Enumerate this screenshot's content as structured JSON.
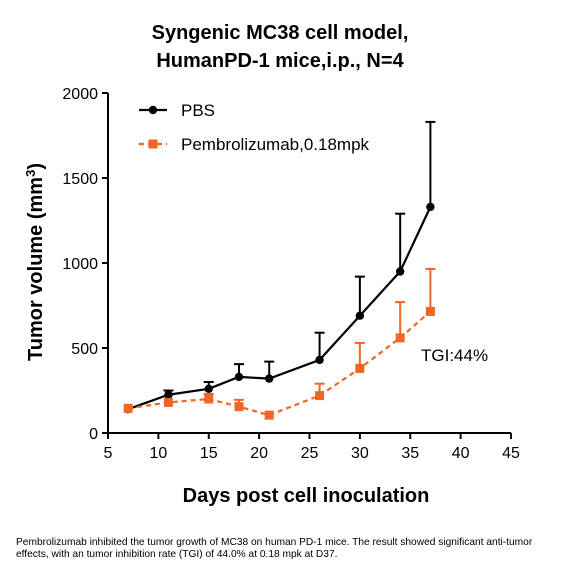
{
  "chart_data": {
    "type": "line",
    "title_line1": "Syngenic MC38 cell model,",
    "title_line2": "HumanPD-1 mice,i.p., N=4",
    "xlabel": "Days post cell inoculation",
    "ylabel_main": "Tumor volume (mm",
    "ylabel_sup": "3",
    "ylabel_close": ")",
    "xlim": [
      5,
      45
    ],
    "ylim": [
      0,
      2000
    ],
    "xticks": [
      "5",
      "10",
      "15",
      "20",
      "25",
      "30",
      "35",
      "40",
      "45"
    ],
    "yticks": [
      "0",
      "500",
      "1000",
      "1500",
      "2000"
    ],
    "legend_position": "top-left",
    "annotation": "TGI:44%",
    "series": [
      {
        "name": "PBS",
        "color": "#000000",
        "marker": "circle",
        "linestyle": "solid",
        "x": [
          7,
          11,
          15,
          18,
          21,
          26,
          30,
          34,
          37
        ],
        "y": [
          140,
          225,
          260,
          330,
          320,
          430,
          690,
          950,
          1330
        ],
        "error": [
          0,
          25,
          40,
          75,
          100,
          160,
          230,
          340,
          500
        ]
      },
      {
        "name": "Pembrolizumab,0.18mpk",
        "color": "#F26522",
        "marker": "square",
        "linestyle": "dashed",
        "x": [
          7,
          11,
          15,
          18,
          21,
          26,
          30,
          34,
          37
        ],
        "y": [
          145,
          180,
          200,
          155,
          105,
          220,
          380,
          560,
          715
        ],
        "error": [
          0,
          0,
          30,
          40,
          0,
          70,
          150,
          210,
          250
        ]
      }
    ]
  },
  "caption": "Pembrolizumab  inhibited the tumor growth of MC38 on human PD-1 mice. The result showed significant anti-tumor effects, with an tumor inhibition rate (TGI) of 44.0% at 0.18 mpk at D37."
}
